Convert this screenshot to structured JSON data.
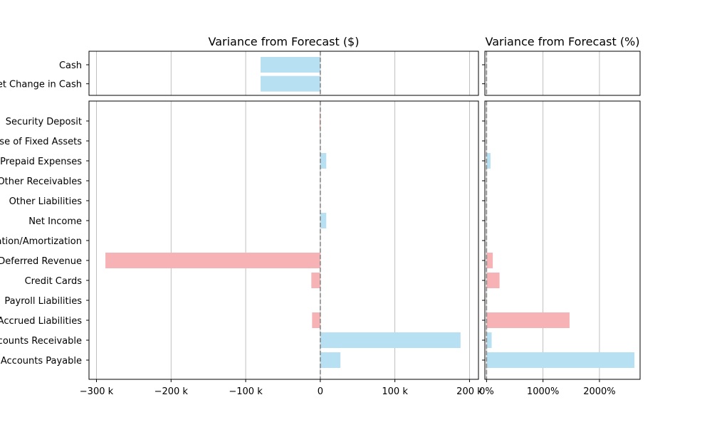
{
  "chart_data": {
    "type": "bar",
    "orientation": "horizontal",
    "colors": {
      "positive": "#b8e0f3",
      "negative": "#f6b2b4",
      "zero_line": "#808080",
      "grid": "#b0b0b0"
    },
    "panels": [
      {
        "title": "Variance from Forecast ($)",
        "xlim": [
          -310000,
          212000
        ],
        "xticks": [
          {
            "value": -300000,
            "label": "−300 k"
          },
          {
            "value": -200000,
            "label": "−200 k"
          },
          {
            "value": -100000,
            "label": "−100 k"
          },
          {
            "value": 0,
            "label": "0"
          },
          {
            "value": 100000,
            "label": "100 k"
          },
          {
            "value": 200000,
            "label": "200 k"
          }
        ],
        "grid": true,
        "top_categories": [
          "Cash",
          "Net Change in Cash"
        ],
        "top_values": [
          -80000,
          -80000
        ],
        "top_colors": [
          "positive",
          "positive"
        ],
        "bottom_categories": [
          "Security Deposit",
          "Purchase of Fixed Assets",
          "Prepaid Expenses",
          "Other Receivables",
          "Other Liabilities",
          "Net Income",
          "Depreciation/Amortization",
          "Deferred Revenue",
          "Credit Cards",
          "Payroll Liabilities",
          "Accrued Liabilities",
          "Accounts Receivable",
          "Accounts Payable"
        ],
        "bottom_values": [
          -1000,
          0,
          8000,
          0,
          0,
          8000,
          0,
          -288000,
          -12000,
          0,
          -11000,
          188000,
          27000
        ],
        "bottom_colors": [
          "negative",
          "positive",
          "positive",
          "positive",
          "positive",
          "positive",
          "positive",
          "negative",
          "negative",
          "positive",
          "negative",
          "positive",
          "positive"
        ]
      },
      {
        "title": "Variance from Forecast (%)",
        "xlim": [
          -30,
          2720
        ],
        "xticks": [
          {
            "value": 0,
            "label": "0%"
          },
          {
            "value": 1000,
            "label": "1000%"
          },
          {
            "value": 2000,
            "label": "2000%"
          }
        ],
        "grid": true,
        "top_values": [
          0,
          0
        ],
        "top_colors": [
          "positive",
          "positive"
        ],
        "bottom_values": [
          0,
          0,
          70,
          0,
          0,
          0,
          0,
          110,
          230,
          0,
          1470,
          90,
          2620
        ],
        "bottom_colors": [
          "negative",
          "positive",
          "positive",
          "positive",
          "positive",
          "positive",
          "positive",
          "negative",
          "negative",
          "positive",
          "negative",
          "positive",
          "positive"
        ]
      }
    ]
  }
}
